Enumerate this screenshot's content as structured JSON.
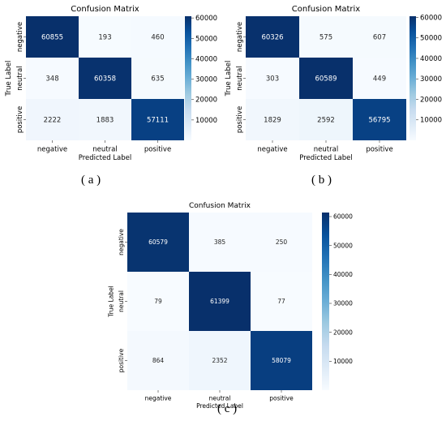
{
  "chart_data": [
    {
      "type": "heatmap",
      "title": "Confusion Matrix",
      "xlabel": "Predicted Label",
      "ylabel": "True Label",
      "x_categories": [
        "negative",
        "neutral",
        "positive"
      ],
      "y_categories": [
        "negative",
        "neutral",
        "positive"
      ],
      "values": [
        [
          60855,
          193,
          460
        ],
        [
          348,
          60358,
          635
        ],
        [
          2222,
          1883,
          57111
        ]
      ],
      "colorbar": {
        "min": 0,
        "max": 60855,
        "ticks": [
          10000,
          20000,
          30000,
          40000,
          50000,
          60000
        ]
      },
      "colormap": [
        "#f7fbff",
        "#deebf7",
        "#c6dbef",
        "#9ecae1",
        "#6baed6",
        "#4292c6",
        "#2171b5",
        "#08519c",
        "#08306b"
      ],
      "caption": "( a )"
    },
    {
      "type": "heatmap",
      "title": "Confusion Matrix",
      "xlabel": "Predicted Label",
      "ylabel": "True Label",
      "x_categories": [
        "negative",
        "neutral",
        "positive"
      ],
      "y_categories": [
        "negative",
        "neutral",
        "positive"
      ],
      "values": [
        [
          60326,
          575,
          607
        ],
        [
          303,
          60589,
          449
        ],
        [
          1829,
          2592,
          56795
        ]
      ],
      "colorbar": {
        "min": 0,
        "max": 60589,
        "ticks": [
          10000,
          20000,
          30000,
          40000,
          50000,
          60000
        ]
      },
      "colormap": [
        "#f7fbff",
        "#deebf7",
        "#c6dbef",
        "#9ecae1",
        "#6baed6",
        "#4292c6",
        "#2171b5",
        "#08519c",
        "#08306b"
      ],
      "caption": "( b )"
    },
    {
      "type": "heatmap",
      "title": "Confusion Matrix",
      "xlabel": "Predicted Label",
      "ylabel": "True Label",
      "x_categories": [
        "negative",
        "neutral",
        "positive"
      ],
      "y_categories": [
        "negative",
        "neutral",
        "positive"
      ],
      "values": [
        [
          60579,
          385,
          250
        ],
        [
          79,
          61399,
          77
        ],
        [
          864,
          2352,
          58079
        ]
      ],
      "colorbar": {
        "min": 0,
        "max": 61399,
        "ticks": [
          10000,
          20000,
          30000,
          40000,
          50000,
          60000
        ]
      },
      "colormap": [
        "#f7fbff",
        "#deebf7",
        "#c6dbef",
        "#9ecae1",
        "#6baed6",
        "#4292c6",
        "#2171b5",
        "#08519c",
        "#08306b"
      ],
      "caption": "( c )"
    }
  ]
}
